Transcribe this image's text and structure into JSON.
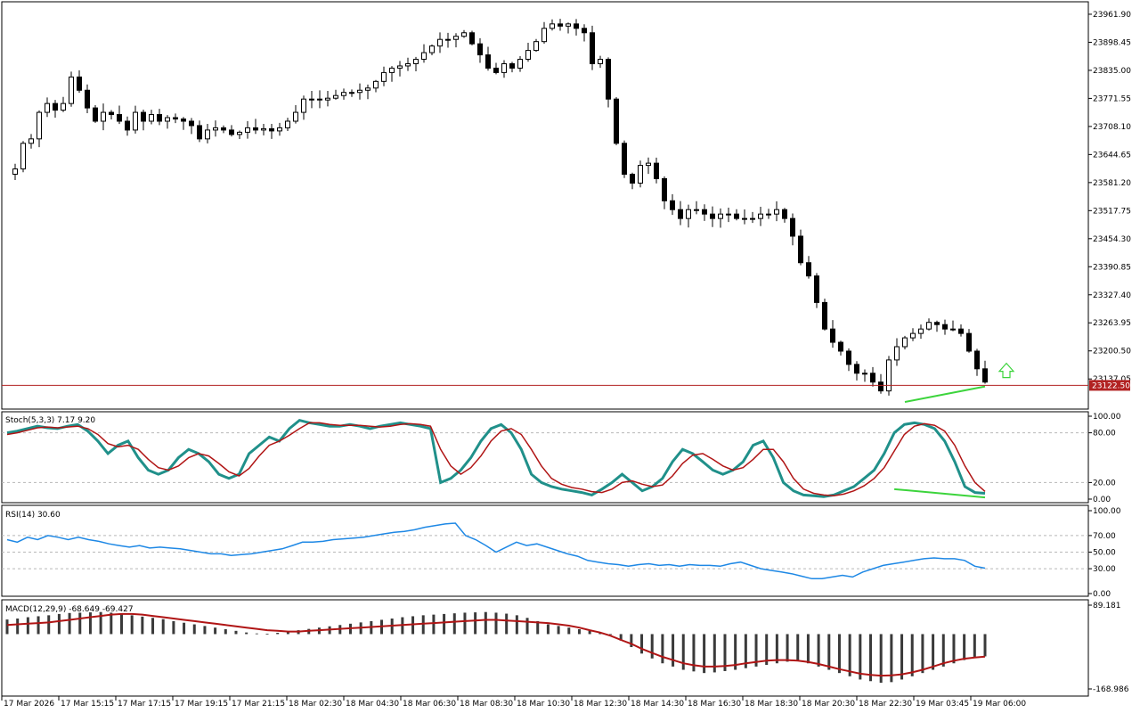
{
  "chart_data": {
    "type": "candlestick",
    "price_axis": {
      "ticks": [
        "23961.90",
        "23898.45",
        "23835.00",
        "23771.55",
        "23708.10",
        "23644.65",
        "23581.20",
        "23517.75",
        "23454.30",
        "23390.85",
        "23327.40",
        "23263.95",
        "23200.50",
        "23137.05"
      ],
      "ylim": [
        23079,
        23982
      ],
      "current_price": "23122.50",
      "current_price_value": 23122.5
    },
    "time_axis": {
      "labels": [
        "17 Mar 2026",
        "17 Mar 15:15",
        "17 Mar 17:15",
        "17 Mar 19:15",
        "17 Mar 21:15",
        "18 Mar 02:30",
        "18 Mar 04:30",
        "18 Mar 06:30",
        "18 Mar 08:30",
        "18 Mar 10:30",
        "18 Mar 12:30",
        "18 Mar 14:30",
        "18 Mar 16:30",
        "18 Mar 18:30",
        "18 Mar 20:30",
        "18 Mar 22:30",
        "19 Mar 03:45",
        "19 Mar 06:00"
      ]
    },
    "price_path": [
      23600,
      23612,
      23670,
      23680,
      23740,
      23760,
      23745,
      23760,
      23820,
      23790,
      23750,
      23720,
      23740,
      23735,
      23720,
      23700,
      23740,
      23720,
      23735,
      23720,
      23728,
      23725,
      23720,
      23710,
      23680,
      23700,
      23705,
      23700,
      23690,
      23695,
      23705,
      23700,
      23703,
      23698,
      23705,
      23720,
      23740,
      23770,
      23770,
      23768,
      23772,
      23778,
      23785,
      23785,
      23790,
      23795,
      23810,
      23830,
      23840,
      23845,
      23850,
      23860,
      23875,
      23890,
      23905,
      23905,
      23912,
      23920,
      23895,
      23870,
      23840,
      23830,
      23850,
      23840,
      23860,
      23880,
      23900,
      23930,
      23940,
      23935,
      23940,
      23930,
      23920,
      23850,
      23860,
      23770,
      23670,
      23600,
      23580,
      23620,
      23625,
      23590,
      23540,
      23520,
      23500,
      23520,
      23520,
      23510,
      23500,
      23510,
      23510,
      23500,
      23500,
      23500,
      23510,
      23510,
      23520,
      23500,
      23460,
      23400,
      23370,
      23310,
      23250,
      23220,
      23200,
      23170,
      23150,
      23150,
      23130,
      23110,
      23180,
      23210,
      23230,
      23240,
      23250,
      23265,
      23260,
      23250,
      23250,
      23240,
      23200,
      23160,
      23130
    ],
    "highlight": {
      "price_from": 23085,
      "price_to": 23120
    },
    "signal_arrow": "up",
    "indicators": [
      {
        "name": "Stoch(5,3,3) 7.17 9.20",
        "ylim": [
          0,
          100
        ],
        "levels": [
          20,
          80
        ],
        "ticks": [
          "100.00",
          "80.00",
          "20.00",
          "0.00"
        ],
        "main": [
          80,
          82,
          85,
          88,
          86,
          85,
          88,
          90,
          82,
          70,
          55,
          65,
          70,
          50,
          35,
          30,
          35,
          50,
          60,
          55,
          45,
          30,
          25,
          30,
          55,
          65,
          75,
          70,
          85,
          95,
          92,
          90,
          88,
          88,
          90,
          88,
          85,
          88,
          90,
          92,
          90,
          88,
          85,
          20,
          25,
          35,
          50,
          70,
          85,
          90,
          80,
          60,
          30,
          20,
          15,
          12,
          10,
          8,
          5,
          12,
          20,
          30,
          20,
          10,
          15,
          25,
          45,
          60,
          55,
          45,
          35,
          30,
          35,
          45,
          65,
          70,
          50,
          20,
          10,
          5,
          4,
          3,
          5,
          10,
          15,
          25,
          35,
          55,
          80,
          90,
          92,
          90,
          85,
          70,
          45,
          15,
          8,
          7
        ],
        "signal": [
          78,
          80,
          83,
          86,
          87,
          86,
          87,
          88,
          85,
          78,
          67,
          63,
          65,
          60,
          48,
          38,
          35,
          40,
          50,
          55,
          52,
          43,
          33,
          28,
          37,
          52,
          65,
          70,
          77,
          85,
          92,
          92,
          90,
          89,
          89,
          89,
          88,
          87,
          88,
          90,
          91,
          90,
          88,
          60,
          40,
          30,
          38,
          52,
          70,
          82,
          85,
          78,
          60,
          40,
          25,
          18,
          14,
          12,
          9,
          8,
          12,
          20,
          22,
          18,
          15,
          17,
          28,
          43,
          53,
          55,
          48,
          40,
          35,
          38,
          48,
          60,
          60,
          45,
          25,
          12,
          7,
          5,
          4,
          6,
          10,
          16,
          25,
          38,
          58,
          78,
          88,
          91,
          89,
          82,
          65,
          40,
          20,
          9.2
        ]
      },
      {
        "name": "RSI(14) 30.60",
        "ylim": [
          0,
          100
        ],
        "levels": [
          30,
          50,
          70
        ],
        "ticks": [
          "100.00",
          "70.00",
          "50.00",
          "30.00",
          "0.00"
        ],
        "values": [
          65,
          62,
          68,
          65,
          70,
          68,
          65,
          68,
          65,
          63,
          60,
          58,
          56,
          58,
          55,
          56,
          55,
          54,
          52,
          50,
          48,
          48,
          46,
          47,
          48,
          50,
          52,
          54,
          58,
          62,
          62,
          63,
          65,
          66,
          67,
          68,
          70,
          72,
          74,
          75,
          77,
          80,
          82,
          84,
          85,
          70,
          65,
          58,
          50,
          56,
          62,
          58,
          60,
          56,
          52,
          48,
          45,
          40,
          38,
          36,
          35,
          33,
          35,
          36,
          34,
          35,
          33,
          35,
          34,
          34,
          33,
          36,
          38,
          34,
          30,
          28,
          26,
          24,
          21,
          18,
          18,
          20,
          22,
          20,
          26,
          30,
          34,
          36,
          38,
          40,
          42,
          43,
          42,
          42,
          40,
          33,
          30.6
        ]
      },
      {
        "name": "MACD(12,29,9) -68.649 -69.427",
        "ylim": [
          -168.986,
          89.181
        ],
        "ticks": [
          "89.181",
          "-168.986"
        ],
        "histogram": [
          45,
          48,
          52,
          55,
          58,
          62,
          65,
          66,
          67,
          68,
          66,
          62,
          58,
          54,
          50,
          46,
          40,
          35,
          30,
          25,
          20,
          15,
          10,
          5,
          2,
          1,
          4,
          8,
          12,
          16,
          20,
          24,
          28,
          32,
          36,
          40,
          44,
          48,
          52,
          55,
          58,
          60,
          62,
          64,
          66,
          67,
          68,
          66,
          63,
          58,
          50,
          40,
          30,
          25,
          20,
          15,
          10,
          5,
          0,
          -20,
          -40,
          -60,
          -75,
          -90,
          -100,
          -110,
          -115,
          -120,
          -118,
          -114,
          -110,
          -105,
          -100,
          -95,
          -90,
          -85,
          -80,
          -90,
          -100,
          -110,
          -120,
          -130,
          -140,
          -145,
          -150,
          -148,
          -140,
          -130,
          -120,
          -110,
          -100,
          -90,
          -80,
          -70,
          -68.649
        ],
        "signal": [
          28,
          30,
          32,
          34,
          36,
          40,
          44,
          48,
          52,
          56,
          60,
          62,
          62,
          60,
          56,
          52,
          48,
          44,
          40,
          36,
          32,
          28,
          24,
          20,
          16,
          12,
          10,
          8,
          8,
          10,
          12,
          14,
          16,
          18,
          20,
          22,
          24,
          26,
          28,
          30,
          32,
          34,
          36,
          38,
          40,
          42,
          44,
          44,
          42,
          40,
          38,
          36,
          34,
          30,
          26,
          20,
          12,
          5,
          -5,
          -18,
          -30,
          -45,
          -58,
          -70,
          -80,
          -90,
          -96,
          -100,
          -100,
          -98,
          -95,
          -90,
          -86,
          -82,
          -80,
          -80,
          -82,
          -86,
          -92,
          -100,
          -108,
          -115,
          -122,
          -126,
          -128,
          -127,
          -124,
          -118,
          -110,
          -100,
          -90,
          -82,
          -76,
          -72,
          -69.427
        ]
      }
    ]
  }
}
